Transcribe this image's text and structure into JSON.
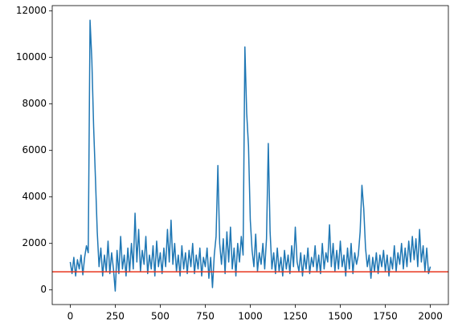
{
  "chart_data": {
    "type": "line",
    "x": [
      0,
      10,
      20,
      30,
      40,
      50,
      60,
      70,
      80,
      90,
      100,
      110,
      120,
      130,
      140,
      150,
      160,
      170,
      180,
      190,
      200,
      210,
      220,
      230,
      240,
      250,
      260,
      270,
      280,
      290,
      300,
      310,
      320,
      330,
      340,
      350,
      360,
      370,
      380,
      390,
      400,
      410,
      420,
      430,
      440,
      450,
      460,
      470,
      480,
      490,
      500,
      510,
      520,
      530,
      540,
      550,
      560,
      570,
      580,
      590,
      600,
      610,
      620,
      630,
      640,
      650,
      660,
      670,
      680,
      690,
      700,
      710,
      720,
      730,
      740,
      750,
      760,
      770,
      780,
      790,
      800,
      810,
      820,
      830,
      840,
      850,
      860,
      870,
      880,
      890,
      900,
      910,
      920,
      930,
      940,
      950,
      960,
      970,
      980,
      990,
      1000,
      1010,
      1020,
      1030,
      1040,
      1050,
      1060,
      1070,
      1080,
      1090,
      1100,
      1110,
      1120,
      1130,
      1140,
      1150,
      1160,
      1170,
      1180,
      1190,
      1200,
      1210,
      1220,
      1230,
      1240,
      1250,
      1260,
      1270,
      1280,
      1290,
      1300,
      1310,
      1320,
      1330,
      1340,
      1350,
      1360,
      1370,
      1380,
      1390,
      1400,
      1410,
      1420,
      1430,
      1440,
      1450,
      1460,
      1470,
      1480,
      1490,
      1500,
      1510,
      1520,
      1530,
      1540,
      1550,
      1560,
      1570,
      1580,
      1590,
      1600,
      1610,
      1620,
      1630,
      1640,
      1650,
      1660,
      1670,
      1680,
      1690,
      1700,
      1710,
      1720,
      1730,
      1740,
      1750,
      1760,
      1770,
      1780,
      1790,
      1800,
      1810,
      1820,
      1830,
      1840,
      1850,
      1860,
      1870,
      1880,
      1890,
      1900,
      1910,
      1920,
      1930,
      1940,
      1950,
      1960,
      1970,
      1980,
      1990,
      2000
    ],
    "series": [
      {
        "color": "#1f77b4",
        "values": [
          1200,
          700,
          1400,
          600,
          1300,
          900,
          1500,
          650,
          1400,
          1900,
          1600,
          11600,
          9900,
          7000,
          4800,
          2500,
          1000,
          1800,
          600,
          1500,
          800,
          2100,
          700,
          1600,
          900,
          -50,
          1700,
          700,
          2300,
          900,
          1500,
          600,
          1800,
          800,
          2000,
          900,
          3300,
          1200,
          2600,
          800,
          1700,
          1100,
          2300,
          700,
          1500,
          900,
          1900,
          600,
          2100,
          1000,
          1600,
          700,
          1800,
          1000,
          2600,
          1200,
          3000,
          1100,
          2000,
          800,
          1500,
          600,
          1900,
          900,
          1600,
          700,
          1700,
          1000,
          2000,
          700,
          1500,
          900,
          1800,
          600,
          1400,
          1000,
          1800,
          500,
          1400,
          100,
          1500,
          2300,
          5350,
          2000,
          1100,
          2200,
          700,
          2500,
          1200,
          2700,
          900,
          1800,
          600,
          2000,
          1200,
          2300,
          1500,
          10450,
          7600,
          6200,
          3000,
          1700,
          1000,
          2400,
          800,
          1600,
          1100,
          2000,
          900,
          2200,
          6300,
          2500,
          900,
          1600,
          700,
          1800,
          800,
          1400,
          600,
          1700,
          900,
          1500,
          700,
          1900,
          1000,
          2700,
          1200,
          800,
          1600,
          600,
          1500,
          900,
          1800,
          700,
          1400,
          1000,
          1900,
          800,
          1500,
          700,
          2000,
          900,
          1600,
          1200,
          2800,
          1000,
          2000,
          800,
          1700,
          900,
          2100,
          1000,
          1500,
          600,
          1800,
          900,
          2000,
          700,
          1600,
          1100,
          1500,
          2500,
          4500,
          3500,
          1800,
          1000,
          1500,
          500,
          1400,
          800,
          1600,
          700,
          1500,
          1000,
          1700,
          800,
          1500,
          600,
          1400,
          900,
          1900,
          800,
          1600,
          1100,
          2000,
          900,
          1800,
          1000,
          2100,
          1200,
          2300,
          1300,
          2200,
          1000,
          2600,
          1200,
          1900,
          800,
          1800,
          700,
          1000
        ]
      }
    ],
    "reference_line": {
      "value": 780,
      "color": "#e8361e"
    },
    "xlim": [
      -100,
      2100
    ],
    "xticks": [
      0,
      250,
      500,
      750,
      1000,
      1250,
      1500,
      1750,
      2000
    ],
    "ylim": [
      -630,
      12230
    ],
    "yticks": [
      0,
      2000,
      4000,
      6000,
      8000,
      10000,
      12000
    ],
    "grid": false
  }
}
